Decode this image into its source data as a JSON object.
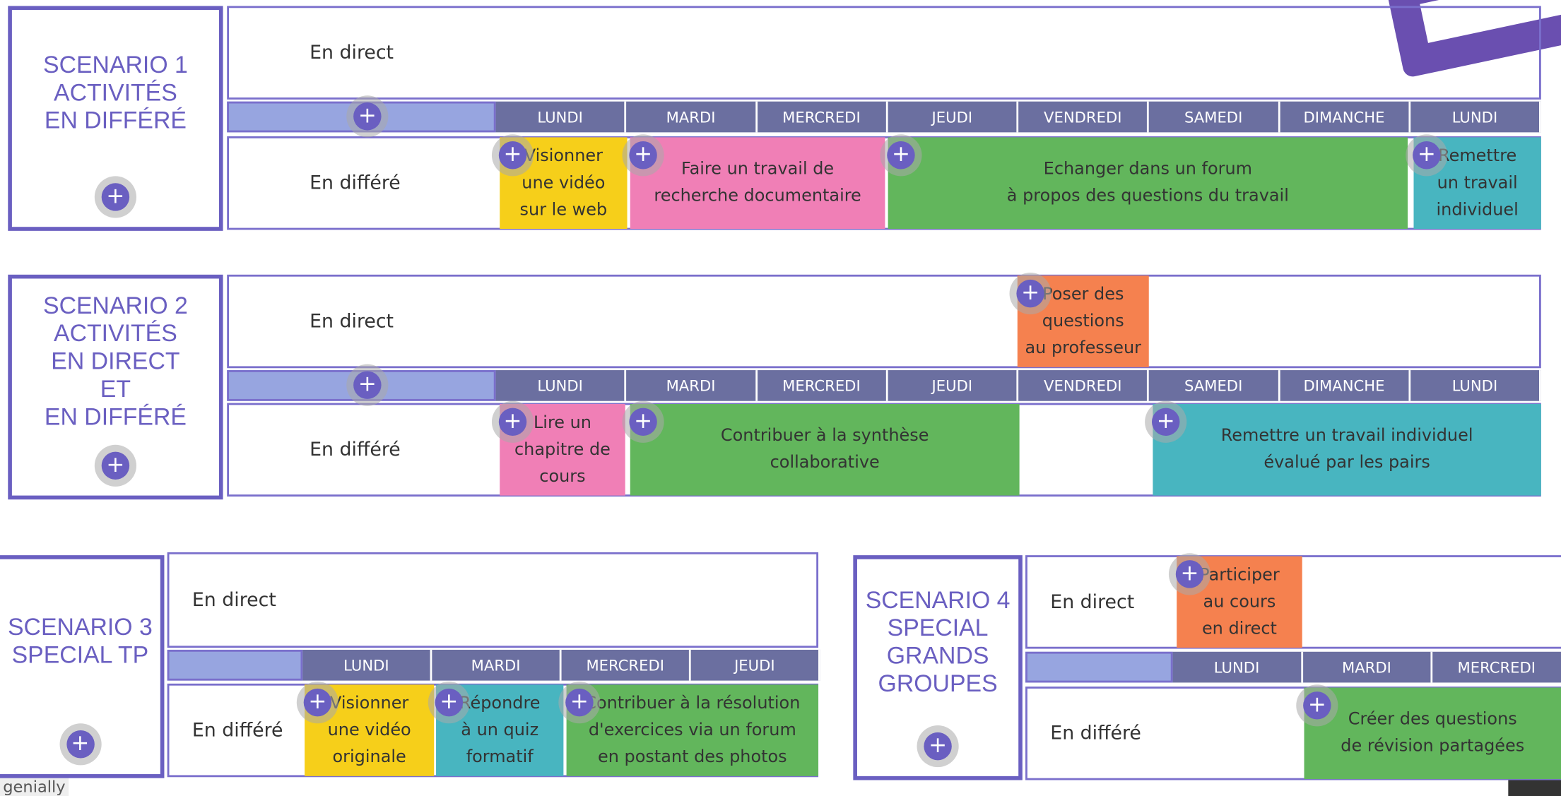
{
  "scenarios": [
    {
      "title": [
        "SCENARIO 1",
        "ACTIVITÉS",
        "EN DIFFÉRÉ"
      ],
      "live_label": "En direct",
      "deferred_label": "En différé",
      "days": [
        "LUNDI",
        "MARDI",
        "MERCREDI",
        "JEUDI",
        "VENDREDI",
        "SAMEDI",
        "DIMANCHE",
        "LUNDI"
      ],
      "live_activities": [],
      "deferred_activities": [
        {
          "lines": [
            "Visionner",
            "une vidéo",
            "sur le web"
          ]
        },
        {
          "lines": [
            "Faire un travail de",
            "recherche documentaire"
          ]
        },
        {
          "lines": [
            "Echanger dans un forum",
            "à propos des questions du travail"
          ]
        },
        {
          "lines": [
            "Remettre",
            "un travail",
            "individuel"
          ]
        }
      ]
    },
    {
      "title": [
        "SCENARIO 2",
        "ACTIVITÉS",
        "EN DIRECT",
        "ET",
        "EN DIFFÉRÉ"
      ],
      "live_label": "En direct",
      "deferred_label": "En différé",
      "days": [
        "LUNDI",
        "MARDI",
        "MERCREDI",
        "JEUDI",
        "VENDREDI",
        "SAMEDI",
        "DIMANCHE",
        "LUNDI"
      ],
      "live_activities": [
        {
          "lines": [
            "Poser des",
            "questions",
            "au professeur"
          ]
        }
      ],
      "deferred_activities": [
        {
          "lines": [
            "Lire un",
            "chapitre de",
            "cours"
          ]
        },
        {
          "lines": [
            "Contribuer à la synthèse",
            "collaborative"
          ]
        },
        {
          "lines": [
            "Remettre un travail individuel",
            "évalué par les pairs"
          ]
        }
      ]
    },
    {
      "title": [
        "SCENARIO 3",
        "SPECIAL TP"
      ],
      "live_label": "En direct",
      "deferred_label": "En différé",
      "days": [
        "LUNDI",
        "MARDI",
        "MERCREDI",
        "JEUDI"
      ],
      "live_activities": [],
      "deferred_activities": [
        {
          "lines": [
            "Visionner",
            "une vidéo",
            "originale"
          ]
        },
        {
          "lines": [
            "Répondre",
            "à un quiz",
            "formatif"
          ]
        },
        {
          "lines": [
            "Contribuer à la résolution",
            "d'exercices via un forum",
            "en postant des photos"
          ]
        }
      ]
    },
    {
      "title": [
        "SCENARIO 4",
        "SPECIAL",
        "GRANDS",
        "GROUPES"
      ],
      "live_label": "En direct",
      "deferred_label": "En différé",
      "days": [
        "LUNDI",
        "MARDI",
        "MERCREDI"
      ],
      "live_activities": [
        {
          "lines": [
            "Participer",
            "au cours",
            "en direct"
          ]
        }
      ],
      "deferred_activities": [
        {
          "lines": [
            "Créer des questions",
            "de révision partagées"
          ]
        }
      ]
    }
  ],
  "footer": {
    "brand": "genially"
  }
}
